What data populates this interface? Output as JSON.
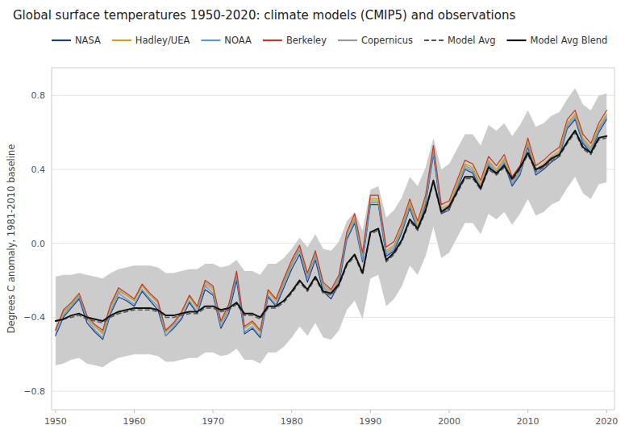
{
  "chart_data": {
    "type": "line",
    "title": "Global surface temperatures 1950-2020: climate models (CMIP5) and observations",
    "ylabel": "Degrees C anomaly, 1981-2010 baseline",
    "x": [
      1950,
      1951,
      1952,
      1953,
      1954,
      1955,
      1956,
      1957,
      1958,
      1959,
      1960,
      1961,
      1962,
      1963,
      1964,
      1965,
      1966,
      1967,
      1968,
      1969,
      1970,
      1971,
      1972,
      1973,
      1974,
      1975,
      1976,
      1977,
      1978,
      1979,
      1980,
      1981,
      1982,
      1983,
      1984,
      1985,
      1986,
      1987,
      1988,
      1989,
      1990,
      1991,
      1992,
      1993,
      1994,
      1995,
      1996,
      1997,
      1998,
      1999,
      2000,
      2001,
      2002,
      2003,
      2004,
      2005,
      2006,
      2007,
      2008,
      2009,
      2010,
      2011,
      2012,
      2013,
      2014,
      2015,
      2016,
      2017,
      2018,
      2019,
      2020
    ],
    "band": {
      "color": "#cccccc",
      "upper": [
        -0.18,
        -0.17,
        -0.17,
        -0.16,
        -0.17,
        -0.18,
        -0.19,
        -0.16,
        -0.14,
        -0.13,
        -0.12,
        -0.12,
        -0.12,
        -0.13,
        -0.16,
        -0.16,
        -0.15,
        -0.14,
        -0.14,
        -0.11,
        -0.11,
        -0.13,
        -0.12,
        -0.09,
        -0.15,
        -0.15,
        -0.17,
        -0.11,
        -0.11,
        -0.08,
        -0.03,
        0.03,
        -0.02,
        0.05,
        -0.03,
        -0.04,
        0.01,
        0.12,
        0.17,
        0.07,
        0.29,
        0.31,
        0.14,
        0.18,
        0.25,
        0.36,
        0.31,
        0.41,
        0.57,
        0.4,
        0.43,
        0.51,
        0.59,
        0.59,
        0.53,
        0.64,
        0.61,
        0.65,
        0.58,
        0.64,
        0.72,
        0.63,
        0.65,
        0.69,
        0.71,
        0.78,
        0.84,
        0.75,
        0.72,
        0.8,
        0.81
      ],
      "lower": [
        -0.66,
        -0.65,
        -0.63,
        -0.62,
        -0.65,
        -0.66,
        -0.67,
        -0.64,
        -0.62,
        -0.61,
        -0.6,
        -0.6,
        -0.6,
        -0.61,
        -0.64,
        -0.64,
        -0.63,
        -0.62,
        -0.62,
        -0.59,
        -0.59,
        -0.61,
        -0.6,
        -0.57,
        -0.63,
        -0.63,
        -0.65,
        -0.59,
        -0.59,
        -0.56,
        -0.51,
        -0.45,
        -0.5,
        -0.43,
        -0.51,
        -0.52,
        -0.47,
        -0.36,
        -0.31,
        -0.41,
        -0.19,
        -0.17,
        -0.34,
        -0.3,
        -0.23,
        -0.12,
        -0.17,
        -0.07,
        0.09,
        -0.08,
        -0.05,
        0.03,
        0.11,
        0.11,
        0.05,
        0.16,
        0.13,
        0.17,
        0.1,
        0.16,
        0.24,
        0.15,
        0.17,
        0.21,
        0.23,
        0.3,
        0.36,
        0.27,
        0.24,
        0.32,
        0.33
      ]
    },
    "series": [
      {
        "name": "NASA",
        "color": "#1F3F7A",
        "line_style": "solid",
        "values": [
          -0.5,
          -0.4,
          -0.35,
          -0.3,
          -0.43,
          -0.48,
          -0.52,
          -0.38,
          -0.29,
          -0.31,
          -0.34,
          -0.26,
          -0.31,
          -0.36,
          -0.5,
          -0.46,
          -0.41,
          -0.32,
          -0.38,
          -0.25,
          -0.28,
          -0.46,
          -0.38,
          -0.2,
          -0.49,
          -0.46,
          -0.51,
          -0.29,
          -0.34,
          -0.24,
          -0.14,
          -0.06,
          -0.21,
          -0.09,
          -0.26,
          -0.3,
          -0.22,
          0.02,
          0.11,
          -0.1,
          0.21,
          0.21,
          -0.07,
          -0.04,
          0.06,
          0.19,
          0.07,
          0.21,
          0.48,
          0.16,
          0.18,
          0.29,
          0.4,
          0.38,
          0.29,
          0.42,
          0.37,
          0.43,
          0.31,
          0.37,
          0.52,
          0.37,
          0.4,
          0.44,
          0.47,
          0.62,
          0.67,
          0.54,
          0.49,
          0.6,
          0.67
        ]
      },
      {
        "name": "Hadley/UEA",
        "color": "#D4A017",
        "line_style": "solid",
        "values": [
          -0.46,
          -0.38,
          -0.33,
          -0.28,
          -0.4,
          -0.45,
          -0.49,
          -0.35,
          -0.26,
          -0.28,
          -0.31,
          -0.23,
          -0.28,
          -0.32,
          -0.48,
          -0.43,
          -0.38,
          -0.29,
          -0.35,
          -0.22,
          -0.25,
          -0.43,
          -0.35,
          -0.17,
          -0.46,
          -0.43,
          -0.48,
          -0.26,
          -0.31,
          -0.21,
          -0.11,
          -0.03,
          -0.18,
          -0.06,
          -0.23,
          -0.27,
          -0.19,
          0.05,
          0.14,
          -0.07,
          0.24,
          0.24,
          -0.04,
          -0.01,
          0.09,
          0.22,
          0.1,
          0.24,
          0.51,
          0.19,
          0.21,
          0.32,
          0.43,
          0.41,
          0.32,
          0.45,
          0.4,
          0.46,
          0.34,
          0.4,
          0.55,
          0.4,
          0.43,
          0.47,
          0.5,
          0.65,
          0.7,
          0.57,
          0.52,
          0.63,
          0.7
        ]
      },
      {
        "name": "NOAA",
        "color": "#5B9BD5",
        "line_style": "solid",
        "values": [
          -0.49,
          -0.39,
          -0.34,
          -0.29,
          -0.41,
          -0.47,
          -0.51,
          -0.37,
          -0.27,
          -0.3,
          -0.33,
          -0.25,
          -0.3,
          -0.34,
          -0.5,
          -0.45,
          -0.4,
          -0.31,
          -0.37,
          -0.23,
          -0.27,
          -0.45,
          -0.36,
          -0.18,
          -0.48,
          -0.45,
          -0.5,
          -0.28,
          -0.33,
          -0.22,
          -0.12,
          -0.04,
          -0.19,
          -0.07,
          -0.24,
          -0.28,
          -0.2,
          0.03,
          0.12,
          -0.09,
          0.22,
          0.22,
          -0.06,
          -0.03,
          0.07,
          0.2,
          0.08,
          0.22,
          0.49,
          0.17,
          0.19,
          0.3,
          0.41,
          0.39,
          0.3,
          0.43,
          0.38,
          0.44,
          0.32,
          0.38,
          0.53,
          0.38,
          0.41,
          0.45,
          0.48,
          0.63,
          0.68,
          0.55,
          0.5,
          0.61,
          0.68
        ]
      },
      {
        "name": "Berkeley",
        "color": "#C0392B",
        "line_style": "solid",
        "values": [
          -0.47,
          -0.36,
          -0.32,
          -0.27,
          -0.39,
          -0.44,
          -0.47,
          -0.33,
          -0.24,
          -0.27,
          -0.3,
          -0.22,
          -0.27,
          -0.31,
          -0.47,
          -0.43,
          -0.37,
          -0.28,
          -0.34,
          -0.2,
          -0.23,
          -0.42,
          -0.33,
          -0.15,
          -0.45,
          -0.42,
          -0.47,
          -0.25,
          -0.3,
          -0.19,
          -0.09,
          -0.01,
          -0.16,
          -0.04,
          -0.21,
          -0.25,
          -0.17,
          0.06,
          0.16,
          -0.05,
          0.26,
          0.26,
          -0.02,
          0.01,
          0.11,
          0.24,
          0.12,
          0.26,
          0.53,
          0.21,
          0.23,
          0.34,
          0.45,
          0.43,
          0.34,
          0.47,
          0.42,
          0.48,
          0.36,
          0.42,
          0.57,
          0.42,
          0.45,
          0.49,
          0.52,
          0.67,
          0.72,
          0.59,
          0.54,
          0.65,
          0.72
        ]
      },
      {
        "name": "Copernicus",
        "color": "#999999",
        "line_style": "solid",
        "values": [
          -0.47,
          -0.37,
          -0.33,
          -0.28,
          -0.4,
          -0.45,
          -0.48,
          -0.34,
          -0.25,
          -0.28,
          -0.31,
          -0.23,
          -0.28,
          -0.32,
          -0.48,
          -0.44,
          -0.38,
          -0.29,
          -0.35,
          -0.21,
          -0.24,
          -0.43,
          -0.34,
          -0.16,
          -0.46,
          -0.43,
          -0.48,
          -0.26,
          -0.31,
          -0.2,
          -0.1,
          -0.02,
          -0.17,
          -0.05,
          -0.22,
          -0.26,
          -0.18,
          0.05,
          0.13,
          -0.08,
          0.23,
          0.23,
          -0.05,
          -0.02,
          0.08,
          0.21,
          0.09,
          0.23,
          0.5,
          0.18,
          0.2,
          0.31,
          0.42,
          0.4,
          0.31,
          0.44,
          0.39,
          0.45,
          0.33,
          0.39,
          0.54,
          0.39,
          0.42,
          0.46,
          0.49,
          0.64,
          0.69,
          0.56,
          0.51,
          0.62,
          0.69
        ]
      },
      {
        "name": "Model Avg",
        "color": "#555555",
        "line_style": "dashed",
        "values": [
          -0.42,
          -0.41,
          -0.4,
          -0.39,
          -0.41,
          -0.42,
          -0.43,
          -0.4,
          -0.38,
          -0.37,
          -0.36,
          -0.36,
          -0.36,
          -0.37,
          -0.4,
          -0.4,
          -0.39,
          -0.38,
          -0.38,
          -0.35,
          -0.35,
          -0.37,
          -0.36,
          -0.33,
          -0.39,
          -0.39,
          -0.41,
          -0.35,
          -0.35,
          -0.32,
          -0.27,
          -0.21,
          -0.26,
          -0.19,
          -0.27,
          -0.28,
          -0.23,
          -0.12,
          -0.07,
          -0.17,
          0.05,
          0.07,
          -0.1,
          -0.06,
          0.01,
          0.12,
          0.07,
          0.17,
          0.33,
          0.16,
          0.19,
          0.27,
          0.35,
          0.35,
          0.29,
          0.4,
          0.37,
          0.41,
          0.34,
          0.4,
          0.48,
          0.39,
          0.41,
          0.45,
          0.47,
          0.54,
          0.6,
          0.51,
          0.48,
          0.56,
          0.57
        ]
      },
      {
        "name": "Model Avg Blend",
        "color": "#111111",
        "line_style": "solid",
        "values": [
          -0.42,
          -0.41,
          -0.39,
          -0.38,
          -0.4,
          -0.41,
          -0.42,
          -0.39,
          -0.37,
          -0.36,
          -0.35,
          -0.35,
          -0.35,
          -0.36,
          -0.39,
          -0.39,
          -0.38,
          -0.37,
          -0.37,
          -0.34,
          -0.34,
          -0.36,
          -0.35,
          -0.32,
          -0.38,
          -0.38,
          -0.4,
          -0.34,
          -0.34,
          -0.31,
          -0.26,
          -0.2,
          -0.25,
          -0.18,
          -0.26,
          -0.27,
          -0.22,
          -0.11,
          -0.06,
          -0.16,
          0.06,
          0.08,
          -0.09,
          -0.05,
          0.02,
          0.13,
          0.08,
          0.18,
          0.34,
          0.17,
          0.2,
          0.28,
          0.36,
          0.36,
          0.3,
          0.41,
          0.38,
          0.42,
          0.35,
          0.41,
          0.49,
          0.4,
          0.42,
          0.46,
          0.48,
          0.55,
          0.61,
          0.52,
          0.49,
          0.57,
          0.58
        ]
      }
    ],
    "xlim": [
      1949.5,
      2021
    ],
    "ylim": [
      -0.9,
      0.95
    ],
    "xticks": [
      1950,
      1960,
      1970,
      1980,
      1990,
      2000,
      2010,
      2020
    ],
    "yticks": [
      {
        "value": -0.8,
        "label": "−0.8"
      },
      {
        "value": -0.4,
        "label": "−0.4"
      },
      {
        "value": 0.0,
        "label": "0.0"
      },
      {
        "value": 0.4,
        "label": "0.4"
      },
      {
        "value": 0.8,
        "label": "0.8"
      }
    ],
    "grid": true,
    "legend": "upper left"
  }
}
